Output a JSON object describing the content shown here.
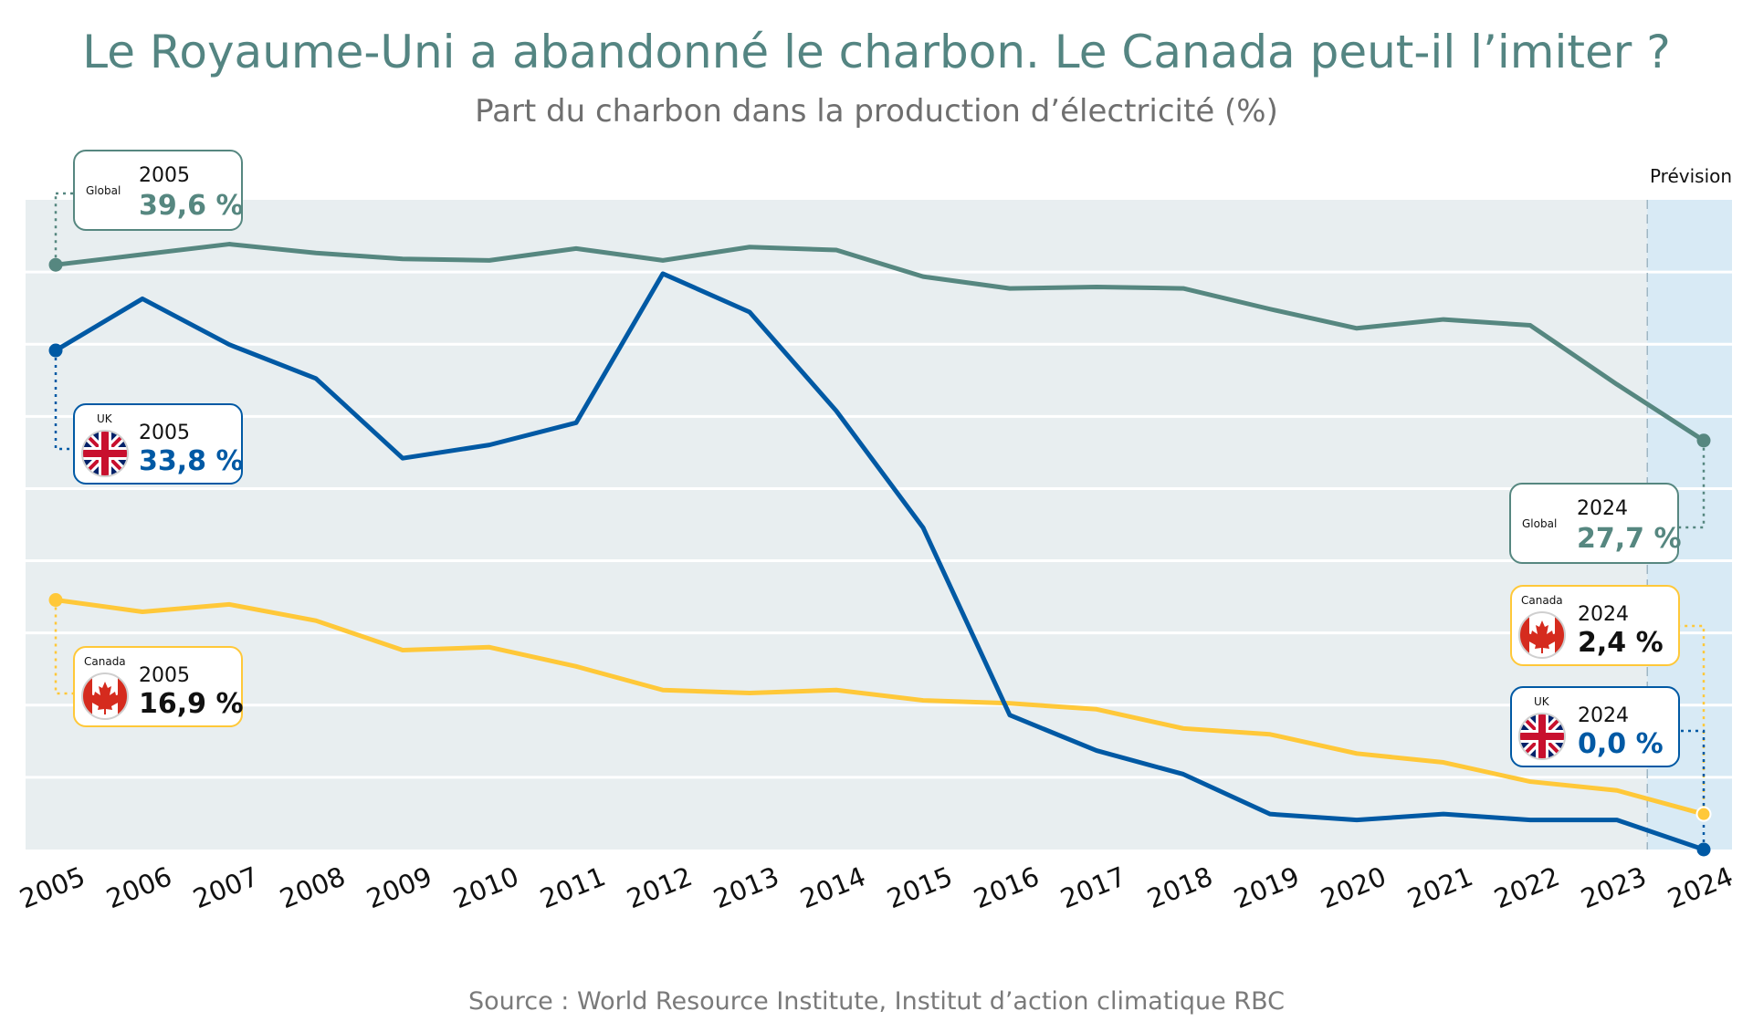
{
  "header": {
    "title": "Le Royaume-Uni a abandonné le charbon. Le Canada peut-il l’imiter ?",
    "subtitle": "Part du charbon dans la production d’électricité (%)"
  },
  "footer": {
    "source": "Source : World Resource Institute, Institut d’action climatique RBC"
  },
  "forecast_label": "Prévision",
  "colors": {
    "global": "#568780",
    "uk": "#0059a4",
    "canada": "#ffc839",
    "plot_bg": "#e8eef0",
    "forecast_bg": "#d8eaf5",
    "grid": "#ffffff"
  },
  "callouts": {
    "global_start": {
      "tag": "Global",
      "year": "2005",
      "value": "39,6 %"
    },
    "uk_start": {
      "tag": "UK",
      "year": "2005",
      "value": "33,8 %"
    },
    "canada_start": {
      "tag": "Canada",
      "year": "2005",
      "value": "16,9 %"
    },
    "global_end": {
      "tag": "Global",
      "year": "2024",
      "value": "27,7 %"
    },
    "canada_end": {
      "tag": "Canada",
      "year": "2024",
      "value": "2,4 %"
    },
    "uk_end": {
      "tag": "UK",
      "year": "2024",
      "value": "0,0 %"
    }
  },
  "chart_data": {
    "type": "line",
    "title": "Le Royaume-Uni a abandonné le charbon. Le Canada peut-il l’imiter ?",
    "subtitle": "Part du charbon dans la production d’électricité (%)",
    "x": [
      "2005",
      "2006",
      "2007",
      "2008",
      "2009",
      "2010",
      "2011",
      "2012",
      "2013",
      "2014",
      "2015",
      "2016",
      "2017",
      "2018",
      "2019",
      "2020",
      "2021",
      "2022",
      "2023",
      "2024"
    ],
    "ylim": [
      0,
      44
    ],
    "grid": true,
    "forecast_from": "2023",
    "series": [
      {
        "name": "Global",
        "color": "#568780",
        "values": [
          39.6,
          40.3,
          41.0,
          40.4,
          40.0,
          39.9,
          40.7,
          39.9,
          40.8,
          40.6,
          38.8,
          38.0,
          38.1,
          38.0,
          36.6,
          35.3,
          35.9,
          35.5,
          31.5,
          27.7
        ]
      },
      {
        "name": "UK",
        "color": "#0059a4",
        "values": [
          33.8,
          37.3,
          34.2,
          31.9,
          26.5,
          27.4,
          28.9,
          39.0,
          36.4,
          29.7,
          21.8,
          9.1,
          6.7,
          5.1,
          2.4,
          2.0,
          2.4,
          2.0,
          2.0,
          0.0
        ]
      },
      {
        "name": "Canada",
        "color": "#ffc839",
        "values": [
          16.9,
          16.1,
          16.6,
          15.5,
          13.5,
          13.7,
          12.4,
          10.8,
          10.6,
          10.8,
          10.1,
          9.9,
          9.5,
          8.2,
          7.8,
          6.5,
          5.9,
          4.6,
          4.0,
          2.4
        ]
      }
    ]
  }
}
